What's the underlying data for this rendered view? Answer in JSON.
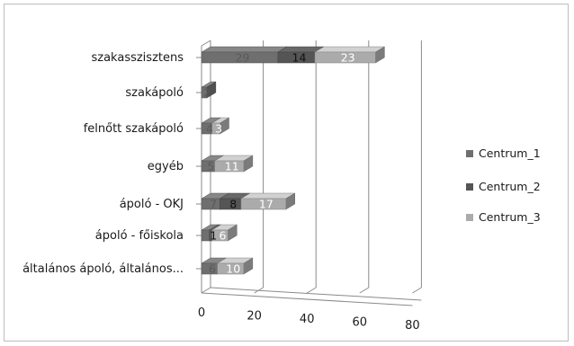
{
  "chart_data": {
    "type": "bar",
    "orientation": "horizontal",
    "style": "3d-stacked",
    "categories": [
      "szakasszisztens",
      "szakápoló",
      "felnőtt szakápoló",
      "egyéb",
      "ápoló - OKJ",
      "ápoló - főiskola",
      "általános ápoló, általános..."
    ],
    "series": [
      {
        "name": "Centrum_1",
        "color": "#6f6f6f",
        "values": [
          29,
          2,
          4,
          5,
          7,
          3,
          6
        ]
      },
      {
        "name": "Centrum_2",
        "color": "#555555",
        "values": [
          14,
          0,
          0,
          0,
          8,
          1,
          0
        ]
      },
      {
        "name": "Centrum_3",
        "color": "#ababab",
        "values": [
          23,
          0,
          3,
          11,
          17,
          6,
          10
        ]
      }
    ],
    "value_labels": [
      [
        "29",
        "14",
        "23"
      ],
      [
        "2",
        "",
        ""
      ],
      [
        "4",
        "",
        "3"
      ],
      [
        "5",
        "",
        "11"
      ],
      [
        "7",
        "8",
        "17"
      ],
      [
        "",
        "1",
        "6"
      ],
      [
        "6",
        "",
        "10"
      ]
    ],
    "xlim": [
      0,
      80
    ],
    "x_ticks": [
      "0",
      "20",
      "40",
      "60",
      "80"
    ],
    "grid": true,
    "legend_position": "right"
  }
}
